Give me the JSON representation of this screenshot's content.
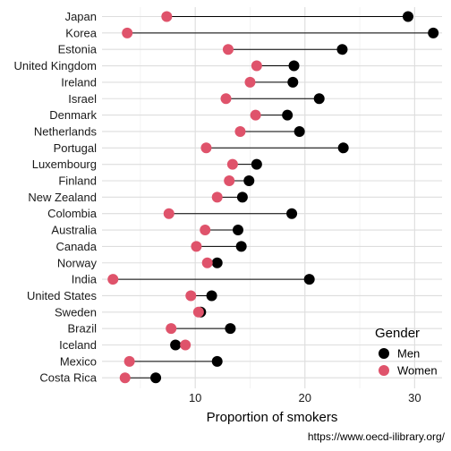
{
  "chart_data": {
    "type": "dumbbell",
    "xlabel": "Proportion of smokers",
    "ylabel": "",
    "xlim": [
      1.5,
      32.5
    ],
    "xticks": [
      10,
      20,
      30
    ],
    "grid": true,
    "legend": {
      "title": "Gender",
      "placement": "right-bottom"
    },
    "caption": "https://www.oecd-ilibrary.org/",
    "series": [
      {
        "name": "Men",
        "color": "#000000"
      },
      {
        "name": "Women",
        "color": "#DF536B"
      }
    ],
    "categories": [
      "Japan",
      "Korea",
      "Estonia",
      "United Kingdom",
      "Ireland",
      "Israel",
      "Denmark",
      "Netherlands",
      "Portugal",
      "Luxembourg",
      "Finland",
      "New Zealand",
      "Colombia",
      "Australia",
      "Canada",
      "Norway",
      "India",
      "United States",
      "Sweden",
      "Brazil",
      "Iceland",
      "Mexico",
      "Costa Rica"
    ],
    "men": [
      29.4,
      31.7,
      23.4,
      19.0,
      18.9,
      21.3,
      18.4,
      19.5,
      23.5,
      15.6,
      14.9,
      14.3,
      18.8,
      13.9,
      14.2,
      12.0,
      20.4,
      11.5,
      10.5,
      13.2,
      8.2,
      12.0,
      6.4
    ],
    "women": [
      7.4,
      3.8,
      13.0,
      15.6,
      15.0,
      12.8,
      15.5,
      14.1,
      11.0,
      13.4,
      13.1,
      12.0,
      7.6,
      10.9,
      10.1,
      11.1,
      2.5,
      9.6,
      10.3,
      7.8,
      9.1,
      4.0,
      3.6
    ]
  }
}
